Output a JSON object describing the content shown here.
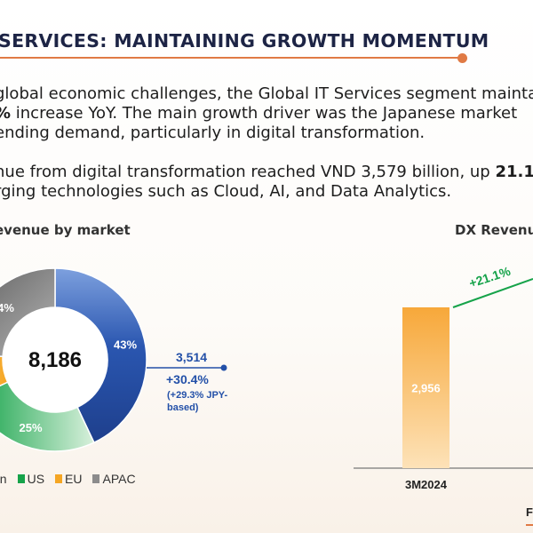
{
  "header": {
    "title": "SERVICES: MAINTAINING GROWTH MOMENTUM"
  },
  "paragraph1": {
    "line1": "global economic challenges, the Global IT Services segment maintai",
    "line2_bold": "%",
    "line2_rest": " increase YoY. The main growth driver was the Japanese market",
    "line3": "ending demand, particularly in digital transformation."
  },
  "paragraph2": {
    "line1_start": "nue from digital transformation reached VND 3,579 billion, up ",
    "line1_bold": "21.1%",
    "line2": "rging technologies such as Cloud, AI, and Data Analytics."
  },
  "pie_section": {
    "label": "evenue by market"
  },
  "bar_section": {
    "label": "DX Revenu"
  },
  "colors": {
    "japan": "#2350a8",
    "us": "#16a34a",
    "eu": "#f5a623",
    "apac": "#8c8c8c",
    "accent": "#e07a45",
    "growth": "#16a34a"
  },
  "chart_data": [
    {
      "type": "pie",
      "center_label": "8,186",
      "slices": [
        {
          "name": "Japan",
          "value": 43,
          "label": "43%",
          "color": "#2350a8"
        },
        {
          "name": "US",
          "value": 25,
          "label": "25%",
          "color": "#16a34a"
        },
        {
          "name": "EU",
          "value": 8,
          "label": "",
          "color": "#f5a623"
        },
        {
          "name": "APAC",
          "value": 24,
          "label": "4%",
          "color": "#8c8c8c"
        }
      ],
      "legend": [
        {
          "label": "an",
          "color": "#2350a8"
        },
        {
          "label": "US",
          "color": "#16a34a"
        },
        {
          "label": "EU",
          "color": "#f5a623"
        },
        {
          "label": "APAC",
          "color": "#8c8c8c"
        }
      ],
      "callout": {
        "value": "3,514",
        "growth": "+30.4%",
        "note_line1": "(+29.3% JPY-",
        "note_line2": "based)"
      }
    },
    {
      "type": "bar",
      "categories": [
        "3M2024"
      ],
      "values": [
        2956
      ],
      "value_labels": [
        "2,956"
      ],
      "growth_label": "+21.1%",
      "partial_label": "F"
    }
  ]
}
